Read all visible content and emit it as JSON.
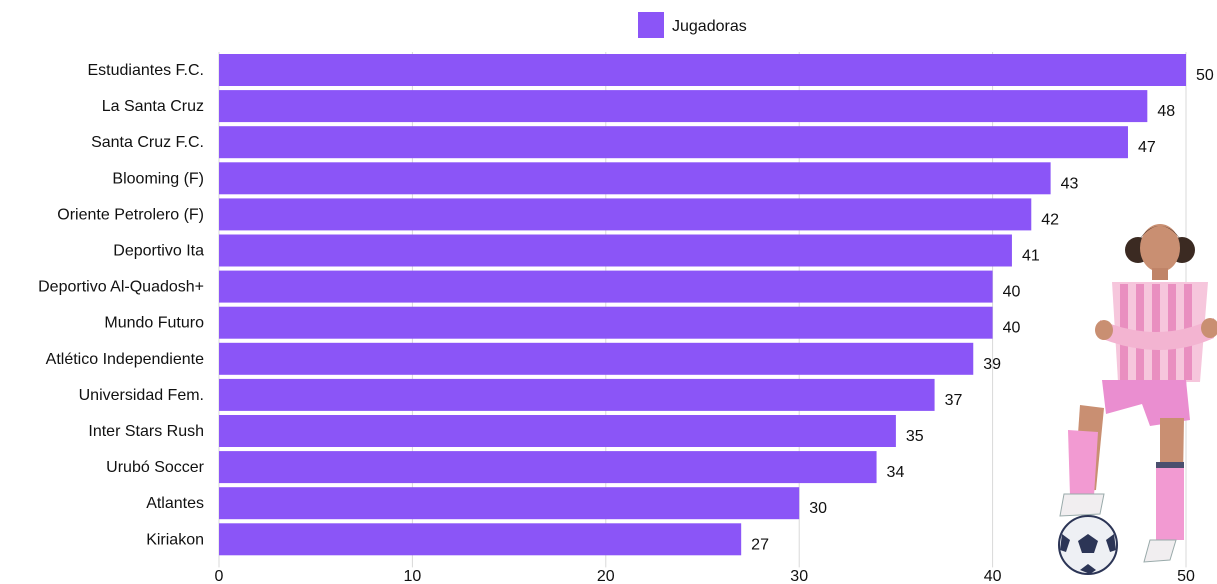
{
  "chart_data": {
    "type": "bar",
    "orientation": "horizontal",
    "title": "",
    "xlabel": "",
    "ylabel": "",
    "categories": [
      "Estudiantes F.C.",
      "La Santa Cruz",
      "Santa Cruz F.C.",
      "Blooming (F)",
      "Oriente Petrolero (F)",
      "Deportivo Ita",
      "Deportivo Al-Quadosh+",
      "Mundo Futuro",
      "Atlético Independiente",
      "Universidad Fem.",
      "Inter Stars Rush",
      "Urubó Soccer",
      "Atlantes",
      "Kiriakon"
    ],
    "series": [
      {
        "name": "Jugadoras",
        "color": "#8b55f7",
        "values": [
          50,
          48,
          47,
          43,
          42,
          41,
          40,
          40,
          39,
          37,
          35,
          34,
          30,
          27
        ]
      }
    ],
    "xlim": [
      0,
      50
    ],
    "xticks": [
      "0",
      "10",
      "20",
      "30",
      "40",
      "50"
    ],
    "grid": "vertical",
    "legend_position": "top-center",
    "data_labels": true
  },
  "decoration": {
    "illustration": "soccer-player-illustration"
  }
}
